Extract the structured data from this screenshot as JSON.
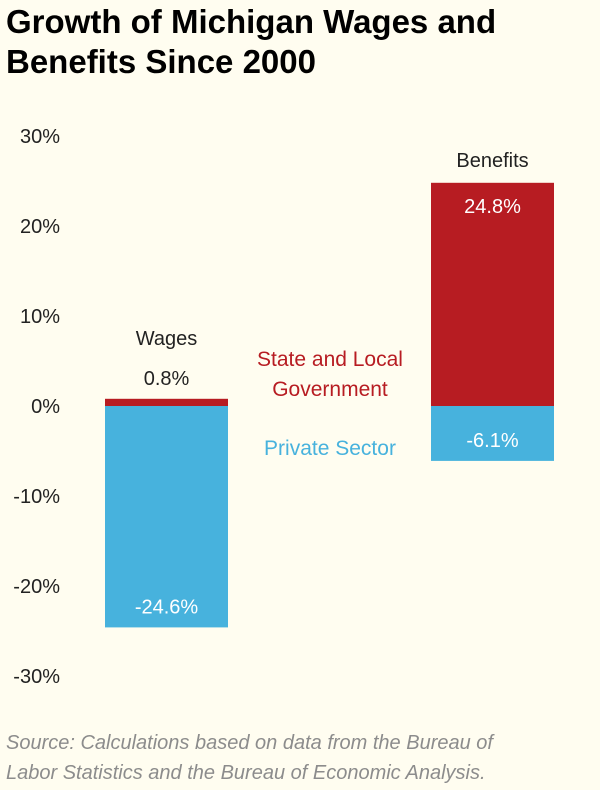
{
  "title_line1": "Growth of Michigan Wages and",
  "title_line2": "Benefits Since 2000",
  "source_line1": "Source: Calculations based on data from the Bureau of",
  "source_line2": "Labor Statistics and the Bureau of Economic Analysis.",
  "chart_data": {
    "type": "bar",
    "title": "Growth of Michigan Wages and Benefits Since 2000",
    "categories": [
      "Wages",
      "Benefits"
    ],
    "series": [
      {
        "name": "State and Local Government",
        "values": [
          0.8,
          24.8
        ],
        "labels": [
          "0.8%",
          "24.8%"
        ],
        "color": "#b71c22"
      },
      {
        "name": "Private Sector",
        "values": [
          -24.6,
          -6.1
        ],
        "labels": [
          "-24.6%",
          "-6.1%"
        ],
        "color": "#47b2dd"
      }
    ],
    "ylim": [
      -30,
      30
    ],
    "yticks": [
      30,
      20,
      10,
      0,
      -10,
      -20,
      -30
    ],
    "ytick_labels": [
      "30%",
      "20%",
      "10%",
      "0%",
      "-10%",
      "-20%",
      "-30%"
    ],
    "xlabel": "",
    "ylabel": "",
    "grid": false,
    "legend": [
      "State and Local Government",
      "Private Sector"
    ]
  }
}
